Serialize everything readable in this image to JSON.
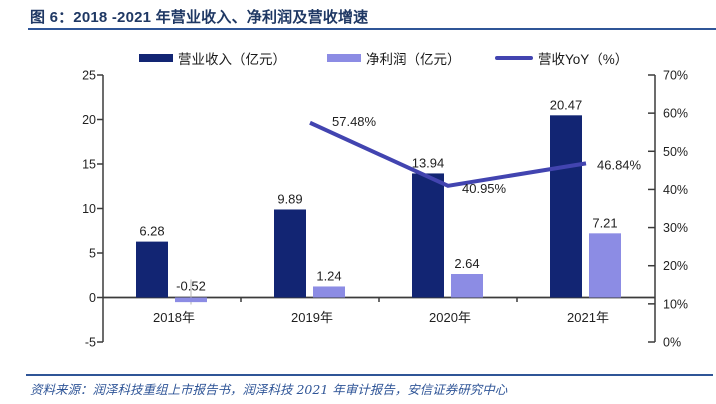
{
  "header": {
    "title": "图 6：2018 -2021 年营业收入、净利润及营收增速"
  },
  "colors": {
    "title-color": "#1F3864",
    "rule-color": "#2F5597",
    "revenue-color": "#122573",
    "profit-color": "#8C8CE4",
    "yoy-color": "#4244B0",
    "axis-color": "#3B3B3B",
    "label-color": "#1F1F1F",
    "leader-color": "#B3B3B3",
    "source-color": "#2F5597"
  },
  "chart_data": {
    "type": "bar",
    "subtype": "bar+line-combo-dual-axis",
    "title": "2018 -2021 年营业收入、净利润及营收增速",
    "categories": [
      "2018年",
      "2019年",
      "2020年",
      "2021年"
    ],
    "series": [
      {
        "name": "营业收入（亿元）",
        "type": "bar",
        "axis": "left",
        "color_key": "revenue-color",
        "values": [
          6.28,
          9.89,
          13.94,
          20.47
        ],
        "labels": [
          "6.28",
          "9.89",
          "13.94",
          "20.47"
        ]
      },
      {
        "name": "净利润（亿元）",
        "type": "bar",
        "axis": "left",
        "color_key": "profit-color",
        "values": [
          -0.52,
          1.24,
          2.64,
          7.21
        ],
        "labels": [
          "-0.52",
          "1.24",
          "2.64",
          "7.21"
        ]
      },
      {
        "name": "营收YoY（%）",
        "type": "line",
        "axis": "right",
        "color_key": "yoy-color",
        "values": [
          null,
          57.48,
          40.95,
          46.84
        ],
        "labels": [
          null,
          "57.48%",
          "40.95%",
          "46.84%"
        ]
      }
    ],
    "left_axis": {
      "min": -5,
      "max": 25,
      "step": 5,
      "tick_labels": [
        "25",
        "20",
        "15",
        "10",
        "5",
        "0",
        "-5"
      ],
      "tick_values": [
        25,
        20,
        15,
        10,
        5,
        0,
        -5
      ]
    },
    "right_axis": {
      "min": 0,
      "max": 70,
      "step": 10,
      "tick_labels": [
        "70%",
        "60%",
        "50%",
        "40%",
        "30%",
        "20%",
        "10%",
        "0%"
      ],
      "tick_values": [
        70,
        60,
        50,
        40,
        30,
        20,
        10,
        0
      ]
    },
    "legend_position": "top",
    "grid": false
  },
  "footer": {
    "source": "资料来源：润泽科技重组上市报告书，润泽科技 2021 年审计报告，安信证券研究中心"
  }
}
